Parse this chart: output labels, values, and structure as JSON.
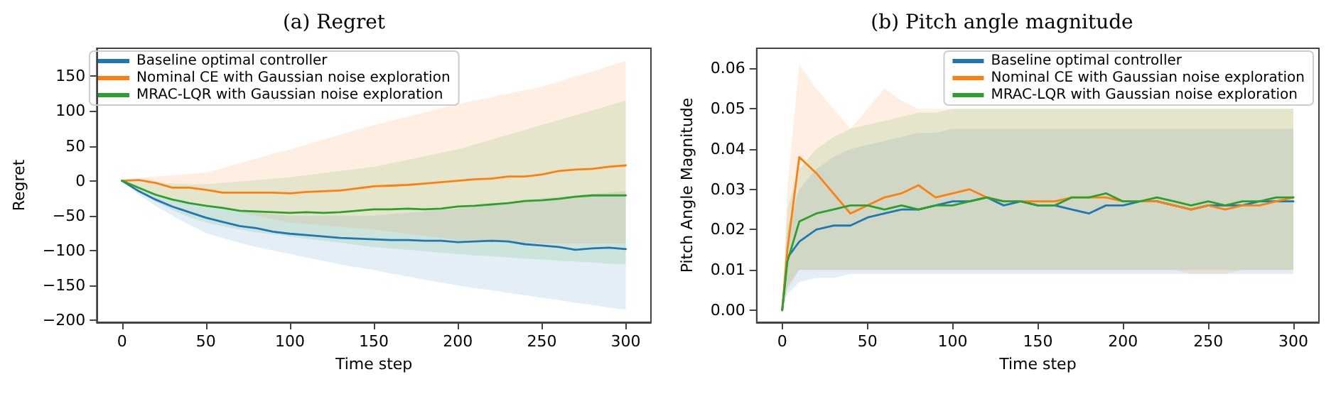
{
  "chart_data": [
    {
      "type": "line",
      "title": "(a) Regret",
      "xlabel": "Time step",
      "ylabel": "Regret",
      "xlim": [
        -15,
        315
      ],
      "ylim": [
        -203,
        190
      ],
      "xticks": [
        0,
        50,
        100,
        150,
        200,
        250,
        300
      ],
      "yticks": [
        -200,
        -150,
        -100,
        -50,
        0,
        50,
        100,
        150
      ],
      "legend": "top left",
      "marker": "none",
      "line_style": "solid",
      "x": [
        0,
        10,
        20,
        30,
        40,
        50,
        60,
        70,
        80,
        90,
        100,
        110,
        120,
        130,
        140,
        150,
        160,
        170,
        180,
        190,
        200,
        210,
        220,
        230,
        240,
        250,
        260,
        270,
        280,
        290,
        300
      ],
      "series": [
        {
          "name": "Baseline optimal controller",
          "color": "#1f77b4",
          "values": [
            0,
            -15,
            -27,
            -37,
            -45,
            -53,
            -59,
            -65,
            -68,
            -73,
            -76,
            -78,
            -80,
            -82,
            -83,
            -84,
            -85,
            -85,
            -86,
            -86,
            -88,
            -87,
            -86,
            -87,
            -91,
            -93,
            -95,
            -99,
            -97,
            -96,
            -98
          ],
          "lower": [
            0,
            -20,
            -36,
            -50,
            -63,
            -75,
            -82,
            -89,
            -95,
            -100,
            -105,
            -110,
            -115,
            -120,
            -124,
            -128,
            -133,
            -137,
            -142,
            -146,
            -150,
            -154,
            -157,
            -161,
            -164,
            -168,
            -171,
            -175,
            -178,
            -182,
            -185
          ],
          "upper": [
            0,
            -10,
            -18,
            -25,
            -30,
            -35,
            -38,
            -42,
            -45,
            -48,
            -50,
            -50,
            -50,
            -50,
            -50,
            -50,
            -48,
            -46,
            -44,
            -42,
            -40,
            -37,
            -34,
            -31,
            -28,
            -25,
            -23,
            -21,
            -19,
            -17,
            -15
          ]
        },
        {
          "name": "Nominal CE with Gaussian noise exploration",
          "color": "#ff7f0e",
          "values": [
            0,
            1,
            -3,
            -10,
            -10,
            -13,
            -17,
            -17,
            -17,
            -17,
            -18,
            -16,
            -15,
            -14,
            -11,
            -8,
            -7,
            -6,
            -4,
            -2,
            0,
            2,
            3,
            6,
            6,
            9,
            14,
            16,
            17,
            20,
            22
          ],
          "lower": [
            0,
            -8,
            -18,
            -25,
            -30,
            -35,
            -40,
            -45,
            -50,
            -55,
            -60,
            -62,
            -64,
            -66,
            -68,
            -70,
            -73,
            -76,
            -79,
            -82,
            -85,
            -86,
            -87,
            -88,
            -89,
            -90,
            -90,
            -90,
            -90,
            -90,
            -90
          ],
          "upper": [
            0,
            4,
            6,
            8,
            10,
            12,
            18,
            25,
            32,
            39,
            45,
            52,
            59,
            66,
            73,
            80,
            86,
            92,
            98,
            104,
            110,
            115,
            120,
            125,
            130,
            135,
            142,
            150,
            157,
            164,
            172
          ]
        },
        {
          "name": "MRAC-LQR with Gaussian noise exploration",
          "color": "#2ca02c",
          "values": [
            0,
            -10,
            -20,
            -27,
            -32,
            -36,
            -39,
            -43,
            -44,
            -45,
            -46,
            -45,
            -46,
            -45,
            -43,
            -41,
            -41,
            -40,
            -41,
            -40,
            -37,
            -36,
            -34,
            -32,
            -29,
            -28,
            -26,
            -23,
            -21,
            -21,
            -21
          ],
          "lower": [
            0,
            -15,
            -30,
            -42,
            -52,
            -60,
            -65,
            -70,
            -74,
            -77,
            -80,
            -83,
            -86,
            -89,
            -92,
            -95,
            -97,
            -99,
            -101,
            -103,
            -105,
            -107,
            -108,
            -110,
            -112,
            -113,
            -115,
            -116,
            -117,
            -119,
            -120
          ],
          "upper": [
            0,
            -2,
            -3,
            -4,
            -5,
            -5,
            -3,
            -1,
            1,
            3,
            5,
            8,
            11,
            14,
            17,
            20,
            25,
            30,
            35,
            40,
            45,
            52,
            59,
            66,
            73,
            80,
            87,
            94,
            101,
            108,
            115
          ]
        }
      ]
    },
    {
      "type": "line",
      "title": "(b) Pitch angle magnitude",
      "xlabel": "Time step",
      "ylabel": "Pitch Angle Magnitude",
      "xlim": [
        -15,
        315
      ],
      "ylim": [
        -0.003,
        0.065
      ],
      "xticks": [
        0,
        50,
        100,
        150,
        200,
        250,
        300
      ],
      "yticks": [
        {
          "value": 0,
          "label": "0.00"
        },
        {
          "value": 0.01,
          "label": "0.01"
        },
        {
          "value": 0.02,
          "label": "0.02"
        },
        {
          "value": 0.03,
          "label": "0.03"
        },
        {
          "value": 0.04,
          "label": "0.04"
        },
        {
          "value": 0.05,
          "label": "0.05"
        },
        {
          "value": 0.06,
          "label": "0.06"
        }
      ],
      "legend": "top right",
      "marker": "none",
      "line_style": "solid",
      "x": [
        0,
        3,
        10,
        20,
        30,
        40,
        50,
        60,
        70,
        80,
        90,
        100,
        110,
        120,
        130,
        140,
        150,
        160,
        170,
        180,
        190,
        200,
        210,
        220,
        230,
        240,
        250,
        260,
        270,
        280,
        290,
        300
      ],
      "series": [
        {
          "name": "Baseline optimal controller",
          "color": "#1f77b4",
          "values": [
            0,
            0.013,
            0.017,
            0.02,
            0.021,
            0.021,
            0.023,
            0.024,
            0.025,
            0.025,
            0.026,
            0.027,
            0.027,
            0.028,
            0.026,
            0.027,
            0.026,
            0.026,
            0.025,
            0.024,
            0.026,
            0.026,
            0.027,
            0.027,
            0.026,
            0.025,
            0.026,
            0.026,
            0.026,
            0.027,
            0.027,
            0.027
          ],
          "lower": [
            0,
            0.004,
            0.007,
            0.008,
            0.008,
            0.009,
            0.009,
            0.009,
            0.009,
            0.009,
            0.009,
            0.009,
            0.009,
            0.009,
            0.009,
            0.009,
            0.009,
            0.009,
            0.009,
            0.009,
            0.009,
            0.009,
            0.009,
            0.009,
            0.009,
            0.009,
            0.009,
            0.009,
            0.009,
            0.009,
            0.009,
            0.009
          ],
          "upper": [
            0,
            0.02,
            0.03,
            0.035,
            0.038,
            0.04,
            0.041,
            0.042,
            0.043,
            0.044,
            0.044,
            0.045,
            0.045,
            0.045,
            0.045,
            0.045,
            0.045,
            0.045,
            0.045,
            0.045,
            0.045,
            0.045,
            0.045,
            0.045,
            0.045,
            0.045,
            0.045,
            0.045,
            0.045,
            0.045,
            0.045,
            0.045
          ]
        },
        {
          "name": "Nominal CE with Gaussian noise exploration",
          "color": "#ff7f0e",
          "values": [
            0,
            0.015,
            0.038,
            0.034,
            0.029,
            0.024,
            0.026,
            0.028,
            0.029,
            0.031,
            0.028,
            0.029,
            0.03,
            0.028,
            0.027,
            0.027,
            0.027,
            0.027,
            0.028,
            0.028,
            0.028,
            0.027,
            0.027,
            0.027,
            0.026,
            0.025,
            0.026,
            0.025,
            0.026,
            0.026,
            0.027,
            0.028
          ],
          "lower": [
            0,
            0.005,
            0.01,
            0.01,
            0.01,
            0.01,
            0.01,
            0.01,
            0.01,
            0.01,
            0.01,
            0.01,
            0.01,
            0.01,
            0.01,
            0.01,
            0.01,
            0.01,
            0.01,
            0.01,
            0.01,
            0.01,
            0.01,
            0.01,
            0.01,
            0.009,
            0.009,
            0.009,
            0.01,
            0.01,
            0.01,
            0.01
          ],
          "upper": [
            0,
            0.03,
            0.061,
            0.055,
            0.05,
            0.045,
            0.05,
            0.055,
            0.052,
            0.05,
            0.05,
            0.05,
            0.05,
            0.05,
            0.05,
            0.05,
            0.05,
            0.05,
            0.05,
            0.05,
            0.05,
            0.05,
            0.05,
            0.05,
            0.05,
            0.05,
            0.05,
            0.05,
            0.05,
            0.05,
            0.05,
            0.05
          ]
        },
        {
          "name": "MRAC-LQR with Gaussian noise exploration",
          "color": "#2ca02c",
          "values": [
            0,
            0.012,
            0.022,
            0.024,
            0.025,
            0.026,
            0.026,
            0.025,
            0.026,
            0.025,
            0.026,
            0.026,
            0.027,
            0.028,
            0.027,
            0.027,
            0.026,
            0.026,
            0.028,
            0.028,
            0.029,
            0.027,
            0.027,
            0.028,
            0.027,
            0.026,
            0.027,
            0.026,
            0.027,
            0.027,
            0.028,
            0.028
          ],
          "lower": [
            0,
            0.006,
            0.01,
            0.01,
            0.01,
            0.01,
            0.01,
            0.01,
            0.01,
            0.01,
            0.01,
            0.01,
            0.01,
            0.01,
            0.01,
            0.01,
            0.01,
            0.01,
            0.01,
            0.01,
            0.01,
            0.01,
            0.01,
            0.01,
            0.01,
            0.01,
            0.01,
            0.01,
            0.01,
            0.01,
            0.01,
            0.01
          ],
          "upper": [
            0,
            0.025,
            0.035,
            0.04,
            0.043,
            0.045,
            0.046,
            0.047,
            0.048,
            0.049,
            0.049,
            0.05,
            0.05,
            0.05,
            0.05,
            0.05,
            0.05,
            0.05,
            0.05,
            0.05,
            0.05,
            0.05,
            0.05,
            0.05,
            0.05,
            0.05,
            0.05,
            0.05,
            0.05,
            0.05,
            0.05,
            0.05
          ]
        }
      ]
    }
  ]
}
